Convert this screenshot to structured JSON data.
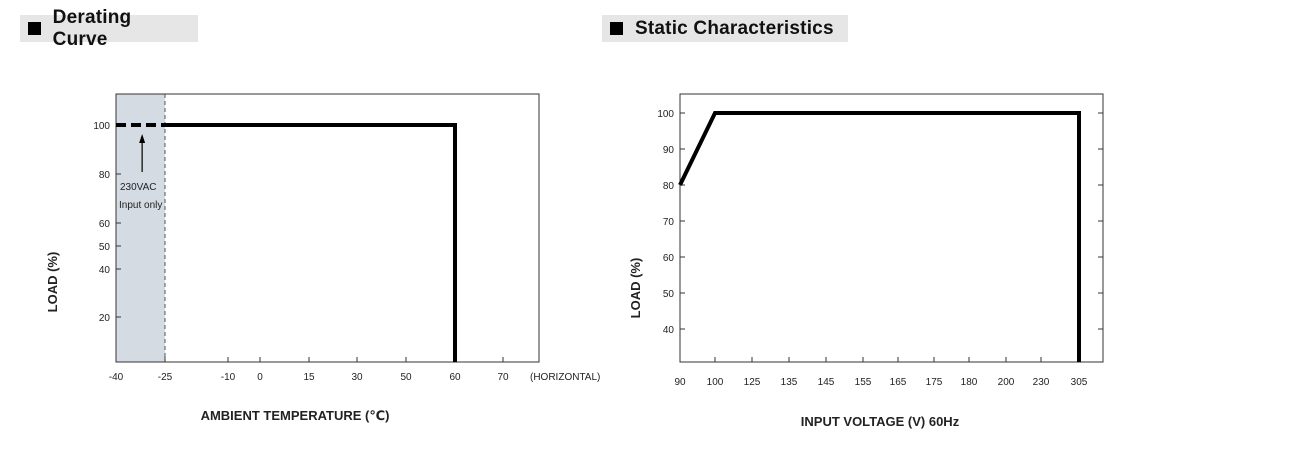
{
  "chart_data": [
    {
      "type": "line",
      "title": "Derating Curve",
      "xlabel": "AMBIENT TEMPERATURE (℃)",
      "ylabel": "LOAD (%)",
      "x_ticks": [
        "-40",
        "-25",
        "-10",
        "0",
        "15",
        "30",
        "50",
        "60",
        "70",
        "(HORIZONTAL)"
      ],
      "y_ticks": [
        "100",
        "80",
        "60",
        "50",
        "40",
        "20"
      ],
      "series": [
        {
          "style": "dashed",
          "x": [
            -40,
            -25
          ],
          "y": [
            100,
            100
          ]
        },
        {
          "style": "solid",
          "x": [
            -25,
            60,
            60
          ],
          "y": [
            100,
            100,
            0
          ]
        }
      ],
      "shaded_region": {
        "x": [
          -40,
          -25
        ],
        "color": "#d4dbe3"
      },
      "annotation": {
        "text": [
          "230VAC",
          "Input only"
        ],
        "x": -32,
        "y": 100
      },
      "grid": false
    },
    {
      "type": "line",
      "title": "Static Characteristics",
      "xlabel": "INPUT VOLTAGE (V) 60Hz",
      "ylabel": "LOAD (%)",
      "x_ticks": [
        "90",
        "100",
        "125",
        "135",
        "145",
        "155",
        "165",
        "175",
        "180",
        "200",
        "230",
        "305"
      ],
      "y_ticks": [
        "100",
        "90",
        "80",
        "70",
        "60",
        "50",
        "40"
      ],
      "series": [
        {
          "style": "solid",
          "x": [
            90,
            100,
            305,
            305
          ],
          "y": [
            80,
            100,
            100,
            30
          ]
        }
      ],
      "grid": false
    }
  ]
}
